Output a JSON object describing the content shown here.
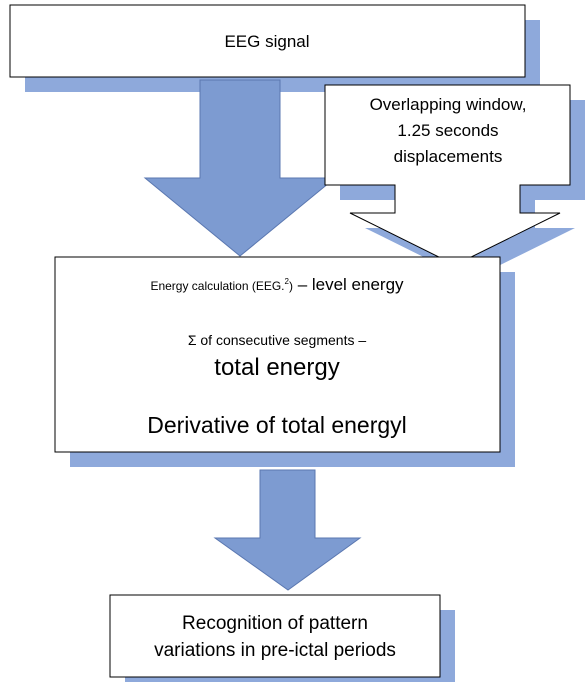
{
  "nodes": [
    {
      "label": "EEG signal"
    },
    {
      "lines": [
        "Overlapping window,",
        "1.25 seconds",
        "displacements"
      ]
    },
    {
      "parts": [
        "Energy calculation (EEG.",
        "2",
        ")",
        " – level energy"
      ],
      "lines": [
        "Σ of consecutive segments –",
        "total energy",
        "Derivative of total energyl"
      ]
    },
    {
      "lines": [
        "Recognition of pattern",
        "variations in pre-ictal periods"
      ]
    }
  ]
}
